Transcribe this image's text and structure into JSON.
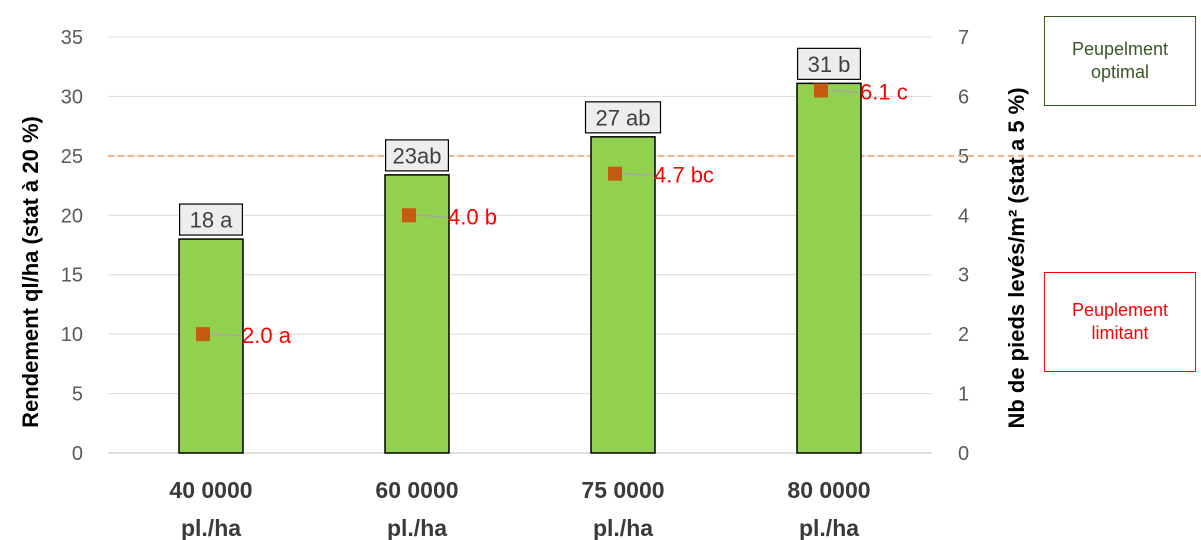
{
  "chart_data": {
    "type": "bar",
    "categories": [
      [
        "40 0000",
        "pl./ha"
      ],
      [
        "60 0000",
        "pl./ha"
      ],
      [
        "75 0000",
        "pl./ha"
      ],
      [
        "80 0000",
        "pl./ha"
      ]
    ],
    "series": [
      {
        "values": [
          18,
          23.4,
          26.6,
          31.1
        ],
        "data_labels": [
          "18 a",
          "23ab",
          "27 ab",
          "31 b"
        ],
        "axis": "left",
        "color": "#92d050"
      },
      {
        "type": "scatter",
        "values": [
          2.0,
          4.0,
          4.7,
          6.1
        ],
        "data_labels": [
          "2.0 a",
          "4.0 b",
          "4.7 bc",
          "6.1 c"
        ],
        "axis": "right",
        "color": "#c55a11"
      }
    ],
    "ylabel": "Rendement ql/ha (stat à 20 %)",
    "y2label": "Nb de pieds levés/m² (stat a 5 %)",
    "ylim": [
      0,
      35
    ],
    "yticks": [
      0,
      5,
      10,
      15,
      20,
      25,
      30,
      35
    ],
    "y2lim": [
      0,
      7
    ],
    "y2ticks": [
      0,
      1,
      2,
      3,
      4,
      5,
      6,
      7
    ],
    "reference_line": {
      "axis": "right",
      "value": 5,
      "color": "#f4b183",
      "style": "dashed"
    },
    "grid": true,
    "annotations": {
      "optimal": [
        "Peupelment",
        "optimal"
      ],
      "limitant": [
        "Peuplement",
        "limitant"
      ]
    }
  }
}
